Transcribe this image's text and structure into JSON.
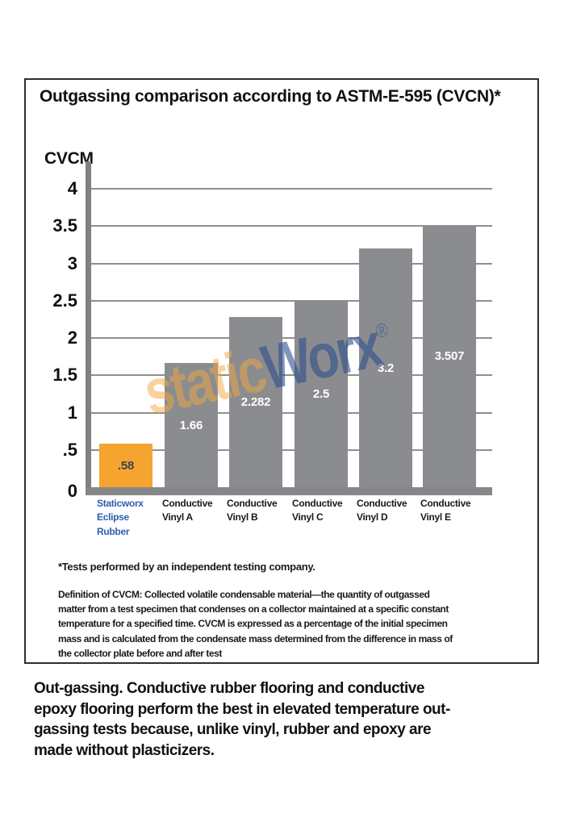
{
  "chart_data": {
    "type": "bar",
    "title": "Outgassing comparison according to ASTM-E-595 (CVCN)*",
    "ylabel": "CVCM",
    "xlabel": "",
    "ylim": [
      0,
      4
    ],
    "grid": true,
    "legend": false,
    "yticks": [
      {
        "label": "4",
        "value": 4
      },
      {
        "label": "3.5",
        "value": 3.5
      },
      {
        "label": "3",
        "value": 3
      },
      {
        "label": "2.5",
        "value": 2.5
      },
      {
        "label": "2",
        "value": 2
      },
      {
        "label": "1.5",
        "value": 1.5
      },
      {
        "label": "1",
        "value": 1
      },
      {
        "label": ".5",
        "value": 0.5
      },
      {
        "label": "0",
        "value": 0
      }
    ],
    "categories": [
      "Staticworx Eclipse Rubber",
      "Conductive Vinyl A",
      "Conductive Vinyl B",
      "Conductive Vinyl C",
      "Conductive Vinyl D",
      "Conductive Vinyl E"
    ],
    "bars": [
      {
        "category_lines": "Staticworx\nEclipse\nRubber",
        "value": 0.58,
        "value_label": ".58",
        "bar_color": "#F5A52F",
        "value_label_color": "#3A4553",
        "category_color": "#2F5EAD"
      },
      {
        "category_lines": "Conductive\nVinyl A",
        "value": 1.66,
        "value_label": "1.66",
        "bar_color": "#8A8C90",
        "value_label_color": "#FFFFFF",
        "category_color": "#1A1A1A"
      },
      {
        "category_lines": "Conductive\nVinyl B",
        "value": 2.282,
        "value_label": "2.282",
        "bar_color": "#8A8C90",
        "value_label_color": "#FFFFFF",
        "category_color": "#1A1A1A"
      },
      {
        "category_lines": "Conductive\nVinyl C",
        "value": 2.5,
        "value_label": "2.5",
        "bar_color": "#8A8C90",
        "value_label_color": "#FFFFFF",
        "category_color": "#1A1A1A"
      },
      {
        "category_lines": "Conductive\nVinyl D",
        "value": 3.2,
        "value_label": "3.2",
        "bar_color": "#8A8C90",
        "value_label_color": "#FFFFFF",
        "category_color": "#1A1A1A"
      },
      {
        "category_lines": "Conductive\nVinyl E",
        "value": 3.507,
        "value_label": "3.507",
        "bar_color": "#8A8C90",
        "value_label_color": "#FFFFFF",
        "category_color": "#1A1A1A"
      }
    ]
  },
  "colors": {
    "accent_orange": "#F5A52F",
    "bar_gray": "#8A8C90",
    "axis_gray": "#7F8184",
    "label_blue": "#2F5EAD"
  },
  "watermark": {
    "part1": "static",
    "part2": "Worx",
    "registered": "®"
  },
  "footnote": "*Tests performed by an independent testing company.",
  "definition": "Definition of CVCM: Collected volatile condensable material—the quantity of outgassed\nmatter from a test specimen that condenses on a collector maintained at a specific constant\ntemperature for a specified time. CVCM is expressed as a percentage of the initial specimen\nmass and is calculated from the condensate mass determined from the difference in mass of\nthe collector plate before and after test",
  "caption": "Out-gassing. Conductive rubber flooring and conductive\nepoxy flooring perform the best in elevated temperature out-\ngassing tests because, unlike vinyl, rubber and epoxy are\nmade without plasticizers."
}
